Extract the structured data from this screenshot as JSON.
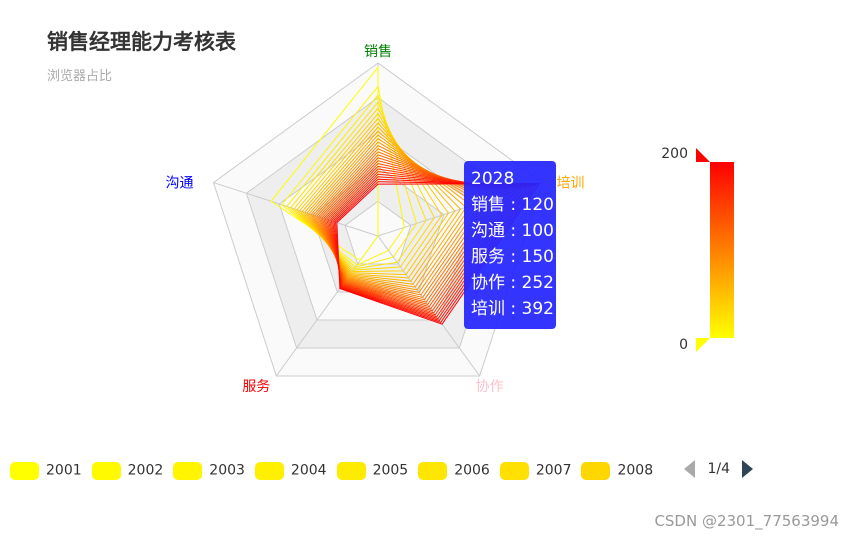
{
  "chart_data": {
    "type": "radar",
    "title": "销售经理能力考核表",
    "subtitle": "浏览器占比",
    "indicators": [
      {
        "name": "销售",
        "max": 400,
        "color": "#008000"
      },
      {
        "name": "培训",
        "max": 400,
        "color": "#FFA500"
      },
      {
        "name": "协作",
        "max": 400,
        "color": "#FFC0CB"
      },
      {
        "name": "服务",
        "max": 400,
        "color": "#FF0000"
      },
      {
        "name": "沟通",
        "max": 400,
        "color": "#0000FF"
      }
    ],
    "series_years": {
      "start": 2001,
      "end": 2028
    },
    "series_first": {
      "name": "2001",
      "values": [
        390,
        0,
        0,
        70,
        260
      ]
    },
    "series_last": {
      "name": "2028",
      "values": [
        120,
        392,
        252,
        150,
        100
      ]
    },
    "visual_map": {
      "min": 0,
      "max": 200,
      "min_label": "0",
      "max_label": "200",
      "colors": [
        "#FFFF00",
        "#FF0000"
      ]
    },
    "tooltip": {
      "title": "2028",
      "rows": [
        "销售 : 120",
        "沟通 : 100",
        "服务 : 150",
        "协作 : 252",
        "培训 : 392"
      ]
    },
    "legend": {
      "items": [
        "2001",
        "2002",
        "2003",
        "2004",
        "2005",
        "2006",
        "2007",
        "2008"
      ],
      "colors": [
        "#FFFF00",
        "#FFFA00",
        "#FFF500",
        "#FFF000",
        "#FFEB00",
        "#FFE600",
        "#FFE000",
        "#FFD700"
      ],
      "page": "1/4",
      "placement": "bottom"
    }
  },
  "watermark": "CSDN @2301_77563994"
}
